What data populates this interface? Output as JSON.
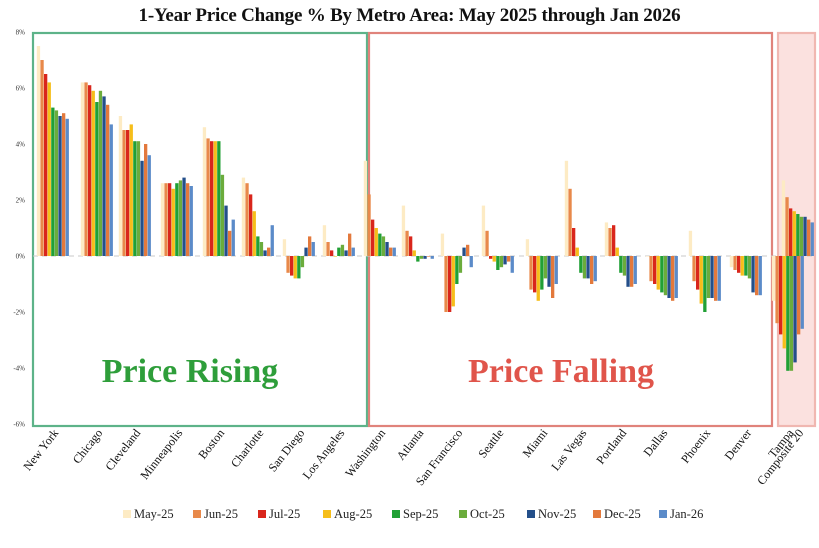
{
  "page": {
    "title": "1-Year Price Change % By Metro Area: May 2025 through Jan 2026"
  },
  "zones": [
    {
      "label": "Price Rising",
      "text_color": "#2e9e3a",
      "border_color": "#5db389",
      "fill": "none"
    },
    {
      "label": "Price Falling",
      "text_color": "#e0554b",
      "border_color": "#e0837b",
      "fill": "none"
    },
    {
      "label": "",
      "text_color": "",
      "border_color": "#f0b7b1",
      "fill": "#fbe1df"
    }
  ],
  "chart_data": {
    "type": "bar",
    "title": "1-Year Price Change % By Metro Area: May 2025 through Jan 2026",
    "xlabel": "",
    "ylabel": "",
    "ylim": [
      -6,
      8
    ],
    "yticks": [
      "8%",
      "6%",
      "4%",
      "2%",
      "0%",
      "-2%",
      "-4%",
      "-6%"
    ],
    "ytick_values": [
      8,
      6,
      4,
      2,
      0,
      -2,
      -4,
      -6
    ],
    "grid": false,
    "legend_position": "bottom",
    "categories": [
      "New York",
      "Chicago",
      "Cleveland",
      "Minneapolis",
      "Boston",
      "Charlotte",
      "San Diego",
      "Los Angeles",
      "Washington",
      "Atlanta",
      "San Francisco",
      "Seattle",
      "Miami",
      "Las Vegas",
      "Portland",
      "Dallas",
      "Phoenix",
      "Denver",
      "Tampa",
      "Composite 20"
    ],
    "series": [
      {
        "name": "May-25",
        "color": "#fdebc4",
        "values": [
          7.5,
          6.2,
          5.0,
          2.6,
          4.6,
          2.8,
          0.6,
          1.1,
          3.4,
          1.8,
          0.8,
          1.8,
          0.6,
          3.4,
          1.2,
          0.0,
          0.9,
          -0.4,
          -1.6,
          2.7
        ]
      },
      {
        "name": "Jun-25",
        "color": "#e8894a",
        "values": [
          7.0,
          6.2,
          4.5,
          2.6,
          4.2,
          2.6,
          -0.6,
          0.5,
          2.2,
          0.9,
          -2.0,
          0.9,
          -1.2,
          2.4,
          1.0,
          -0.9,
          -0.9,
          -0.5,
          -2.4,
          2.1
        ]
      },
      {
        "name": "Jul-25",
        "color": "#d9261c",
        "values": [
          6.5,
          6.1,
          4.5,
          2.6,
          4.1,
          2.2,
          -0.7,
          0.2,
          1.3,
          0.7,
          -2.0,
          -0.1,
          -1.3,
          1.0,
          1.1,
          -1.0,
          -1.2,
          -0.6,
          -2.8,
          1.7
        ]
      },
      {
        "name": "Aug-25",
        "color": "#f6be1a",
        "values": [
          6.2,
          5.9,
          4.7,
          2.4,
          4.1,
          1.6,
          -0.8,
          0.0,
          1.0,
          0.2,
          -1.8,
          -0.2,
          -1.6,
          0.3,
          0.3,
          -1.2,
          -1.7,
          -0.7,
          -3.3,
          1.6
        ]
      },
      {
        "name": "Sep-25",
        "color": "#21a035",
        "values": [
          5.3,
          5.5,
          4.1,
          2.6,
          4.1,
          0.7,
          -0.8,
          0.3,
          0.8,
          -0.2,
          -1.0,
          -0.5,
          -1.2,
          -0.6,
          -0.6,
          -1.3,
          -2.0,
          -0.7,
          -4.1,
          1.5
        ]
      },
      {
        "name": "Oct-25",
        "color": "#6bac3c",
        "values": [
          5.2,
          5.9,
          4.1,
          2.7,
          2.9,
          0.5,
          -0.4,
          0.4,
          0.7,
          -0.1,
          -0.6,
          -0.4,
          -0.8,
          -0.8,
          -0.7,
          -1.4,
          -1.5,
          -0.8,
          -4.1,
          1.4
        ]
      },
      {
        "name": "Nov-25",
        "color": "#244f8a",
        "values": [
          5.0,
          5.7,
          3.4,
          2.8,
          1.8,
          0.2,
          0.3,
          0.2,
          0.5,
          -0.1,
          0.3,
          -0.3,
          -1.1,
          -0.8,
          -1.1,
          -1.5,
          -1.5,
          -1.3,
          -3.8,
          1.4
        ]
      },
      {
        "name": "Dec-25",
        "color": "#e3793c",
        "values": [
          5.1,
          5.4,
          4.0,
          2.6,
          0.9,
          0.3,
          0.7,
          0.8,
          0.3,
          0.0,
          0.4,
          -0.2,
          -1.5,
          -1.0,
          -1.1,
          -1.6,
          -1.6,
          -1.4,
          -2.8,
          1.3
        ]
      },
      {
        "name": "Jan-26",
        "color": "#5b8bc9",
        "values": [
          4.9,
          4.7,
          3.6,
          2.5,
          1.3,
          1.1,
          0.5,
          0.3,
          0.3,
          -0.1,
          -0.4,
          -0.6,
          -1.0,
          -0.9,
          -1.0,
          -1.5,
          -1.6,
          -1.4,
          -2.6,
          1.2
        ]
      }
    ]
  }
}
